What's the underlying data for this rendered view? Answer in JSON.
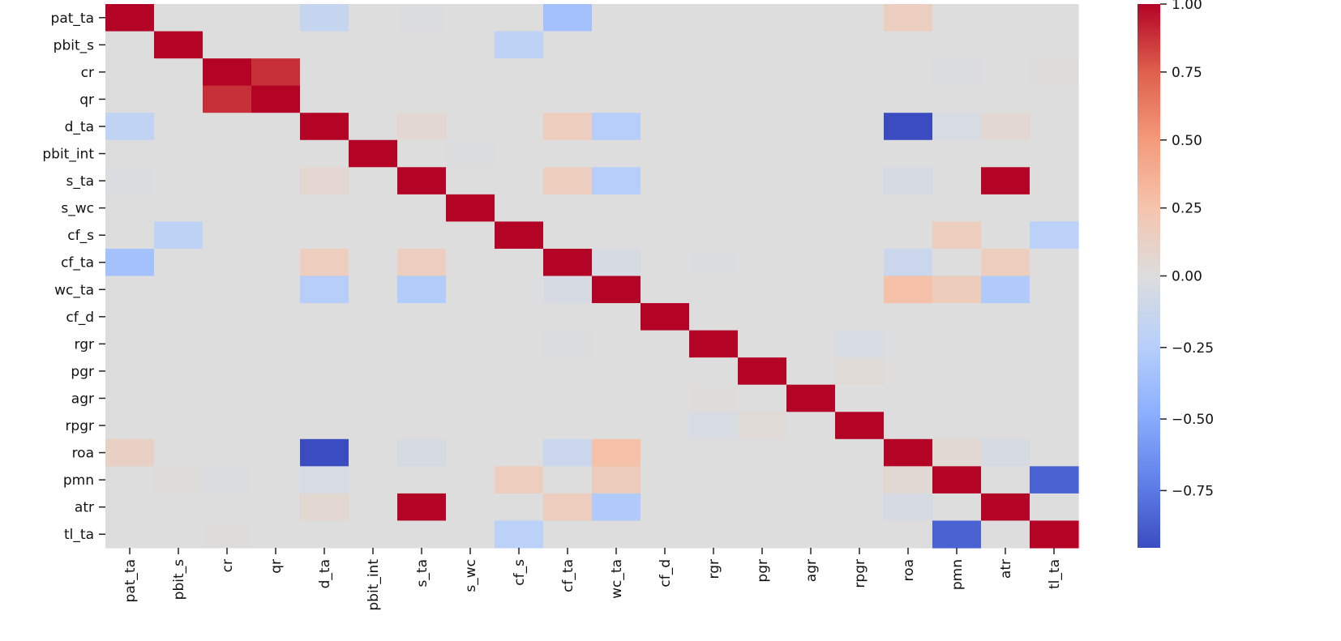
{
  "chart_data": {
    "type": "heatmap",
    "title": "",
    "xlabel": "",
    "ylabel": "",
    "labels": [
      "pat_ta",
      "pbit_s",
      "cr",
      "qr",
      "d_ta",
      "pbit_int",
      "s_ta",
      "s_wc",
      "cf_s",
      "cf_ta",
      "wc_ta",
      "cf_d",
      "rgr",
      "pgr",
      "agr",
      "rpgr",
      "roa",
      "pmn",
      "atr",
      "tl_ta"
    ],
    "colormap": "coolwarm",
    "vmin": -0.95,
    "vmax": 1.0,
    "colorbar_ticks": [
      "1.00",
      "0.75",
      "0.50",
      "0.25",
      "0.00",
      "−0.25",
      "−0.50",
      "−0.75"
    ],
    "colorbar_tick_values": [
      1.0,
      0.75,
      0.5,
      0.25,
      0.0,
      -0.25,
      -0.5,
      -0.75
    ],
    "matrix": [
      [
        1,
        0,
        0,
        0,
        -0.15,
        0,
        -0.01,
        0,
        0,
        -0.35,
        0,
        0,
        0,
        0,
        0,
        0,
        0.15,
        0,
        0,
        0
      ],
      [
        0,
        1,
        0,
        0,
        0,
        0,
        0,
        0,
        -0.2,
        0,
        0,
        0,
        0,
        0,
        0,
        0,
        0,
        0,
        0,
        0
      ],
      [
        0,
        0,
        1,
        0.88,
        0,
        0,
        0,
        0,
        0,
        0,
        0,
        0,
        0,
        0,
        0,
        0,
        0,
        -0.02,
        0,
        0.01
      ],
      [
        0,
        0,
        0.88,
        1,
        0,
        0,
        0,
        0,
        0,
        0,
        0,
        0,
        0,
        0,
        0,
        0,
        0,
        0,
        0,
        0
      ],
      [
        -0.18,
        0,
        0,
        0,
        1,
        0,
        0.06,
        0,
        0,
        0.16,
        -0.25,
        0,
        0,
        0,
        0,
        0,
        -0.95,
        -0.04,
        0.06,
        0
      ],
      [
        0,
        0,
        0,
        0,
        0,
        1,
        0,
        -0.01,
        0,
        0,
        0,
        0,
        0,
        0,
        0,
        0,
        0,
        0,
        0,
        0
      ],
      [
        -0.02,
        0,
        0,
        0,
        0.07,
        0,
        1,
        0,
        0,
        0.16,
        -0.25,
        0,
        0,
        0,
        0,
        0,
        -0.05,
        0,
        1,
        0
      ],
      [
        0,
        0,
        0,
        0,
        0,
        0,
        0,
        1,
        0,
        0,
        0,
        0,
        0,
        0,
        0,
        0,
        0,
        0,
        0,
        0
      ],
      [
        0,
        -0.2,
        0,
        0,
        0,
        0,
        0,
        0,
        1,
        0,
        0,
        0,
        0,
        0,
        0,
        0,
        0,
        0.16,
        0,
        -0.22
      ],
      [
        -0.35,
        0,
        0,
        0,
        0.16,
        0,
        0.15,
        0,
        0,
        1,
        -0.05,
        0,
        -0.01,
        0,
        0,
        0,
        -0.12,
        0,
        0.16,
        0
      ],
      [
        0,
        0,
        0,
        0,
        -0.25,
        0,
        -0.27,
        0,
        0,
        -0.05,
        1,
        0,
        0,
        0,
        0,
        0,
        0.27,
        0.17,
        -0.28,
        0
      ],
      [
        0,
        0,
        0,
        0,
        0,
        0,
        0,
        0,
        0,
        0,
        0,
        1,
        0,
        0,
        0,
        0,
        0,
        0,
        0,
        0
      ],
      [
        0,
        0,
        0,
        0,
        0,
        0,
        0,
        0,
        0,
        -0.01,
        0,
        0,
        1,
        0,
        0,
        -0.04,
        0,
        0,
        0,
        0
      ],
      [
        0,
        0,
        0,
        0,
        0,
        0,
        0,
        0,
        0,
        0,
        0,
        0,
        0,
        1,
        0,
        0.03,
        0,
        0,
        0,
        0
      ],
      [
        0,
        0,
        0,
        0,
        0,
        0,
        0,
        0,
        0,
        0,
        0,
        0,
        0.01,
        0,
        1,
        0,
        0,
        0,
        0,
        0
      ],
      [
        0,
        0,
        0,
        0,
        0,
        0,
        0,
        0,
        0,
        0,
        0,
        0,
        -0.04,
        0.03,
        0,
        1,
        0,
        0,
        0,
        0
      ],
      [
        0.13,
        0,
        0,
        0,
        -0.95,
        0,
        -0.05,
        0,
        0,
        -0.12,
        0.27,
        0,
        0,
        0,
        0,
        0,
        1,
        0.05,
        -0.05,
        0
      ],
      [
        0,
        0.01,
        -0.02,
        0,
        -0.04,
        0,
        0,
        0,
        0.16,
        0,
        0.17,
        0,
        0,
        0,
        0,
        0,
        0.05,
        1,
        0,
        -0.85
      ],
      [
        0,
        0,
        0,
        0,
        0.06,
        0,
        1,
        0,
        0,
        0.16,
        -0.28,
        0,
        0,
        0,
        0,
        0,
        -0.05,
        0,
        1,
        0
      ],
      [
        0,
        0,
        0.01,
        0,
        0,
        0,
        0,
        0,
        -0.22,
        0,
        0,
        0,
        0,
        0,
        0,
        0,
        0,
        -0.85,
        0,
        1
      ]
    ]
  }
}
